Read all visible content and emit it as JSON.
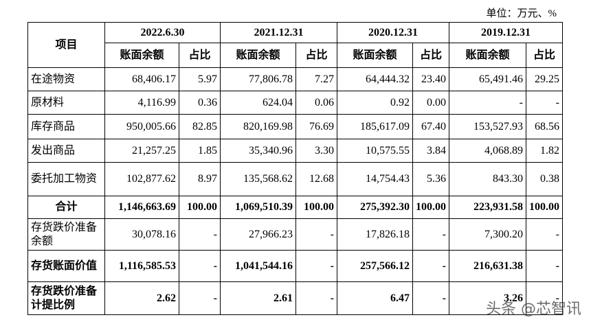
{
  "unit_note": "单位：万元、%",
  "table": {
    "header": {
      "item": "项目",
      "periods": [
        "2022.6.30",
        "2021.12.31",
        "2020.12.31",
        "2019.12.31"
      ],
      "sub": [
        "账面余额",
        "占比"
      ]
    },
    "rows": [
      {
        "label": "在途物资",
        "cells": [
          "68,406.17",
          "5.97",
          "77,806.78",
          "7.27",
          "64,444.32",
          "23.40",
          "65,491.46",
          "29.25"
        ]
      },
      {
        "label": "原材料",
        "cells": [
          "4,116.99",
          "0.36",
          "624.04",
          "0.06",
          "0.92",
          "0.00",
          "-",
          "-"
        ]
      },
      {
        "label": "库存商品",
        "cells": [
          "950,005.66",
          "82.85",
          "820,169.98",
          "76.69",
          "185,617.09",
          "67.40",
          "153,527.93",
          "68.56"
        ]
      },
      {
        "label": "发出商品",
        "cells": [
          "21,257.25",
          "1.85",
          "35,340.96",
          "3.30",
          "10,575.55",
          "3.84",
          "4,068.89",
          "1.82"
        ]
      },
      {
        "label": "委托加工物资",
        "cells": [
          "102,877.62",
          "8.97",
          "135,568.62",
          "12.68",
          "14,754.43",
          "5.36",
          "843.30",
          "0.38"
        ]
      },
      {
        "label": "合计",
        "cells": [
          "1,146,663.69",
          "100.00",
          "1,069,510.39",
          "100.00",
          "275,392.30",
          "100.00",
          "223,931.58",
          "100.00"
        ]
      },
      {
        "label": "存货跌价准备余额",
        "cells": [
          "30,078.16",
          "-",
          "27,966.23",
          "-",
          "17,826.18",
          "-",
          "7,300.20",
          "-"
        ]
      },
      {
        "label": "存货账面价值",
        "cells": [
          "1,116,585.53",
          "-",
          "1,041,544.16",
          "-",
          "257,566.12",
          "-",
          "216,631.38",
          "-"
        ]
      },
      {
        "label": "存货跌价准备计提比例",
        "cells": [
          "2.62",
          "-",
          "2.61",
          "-",
          "6.47",
          "-",
          "3.26",
          "-"
        ]
      }
    ]
  },
  "watermark": "头条 @芯智讯"
}
